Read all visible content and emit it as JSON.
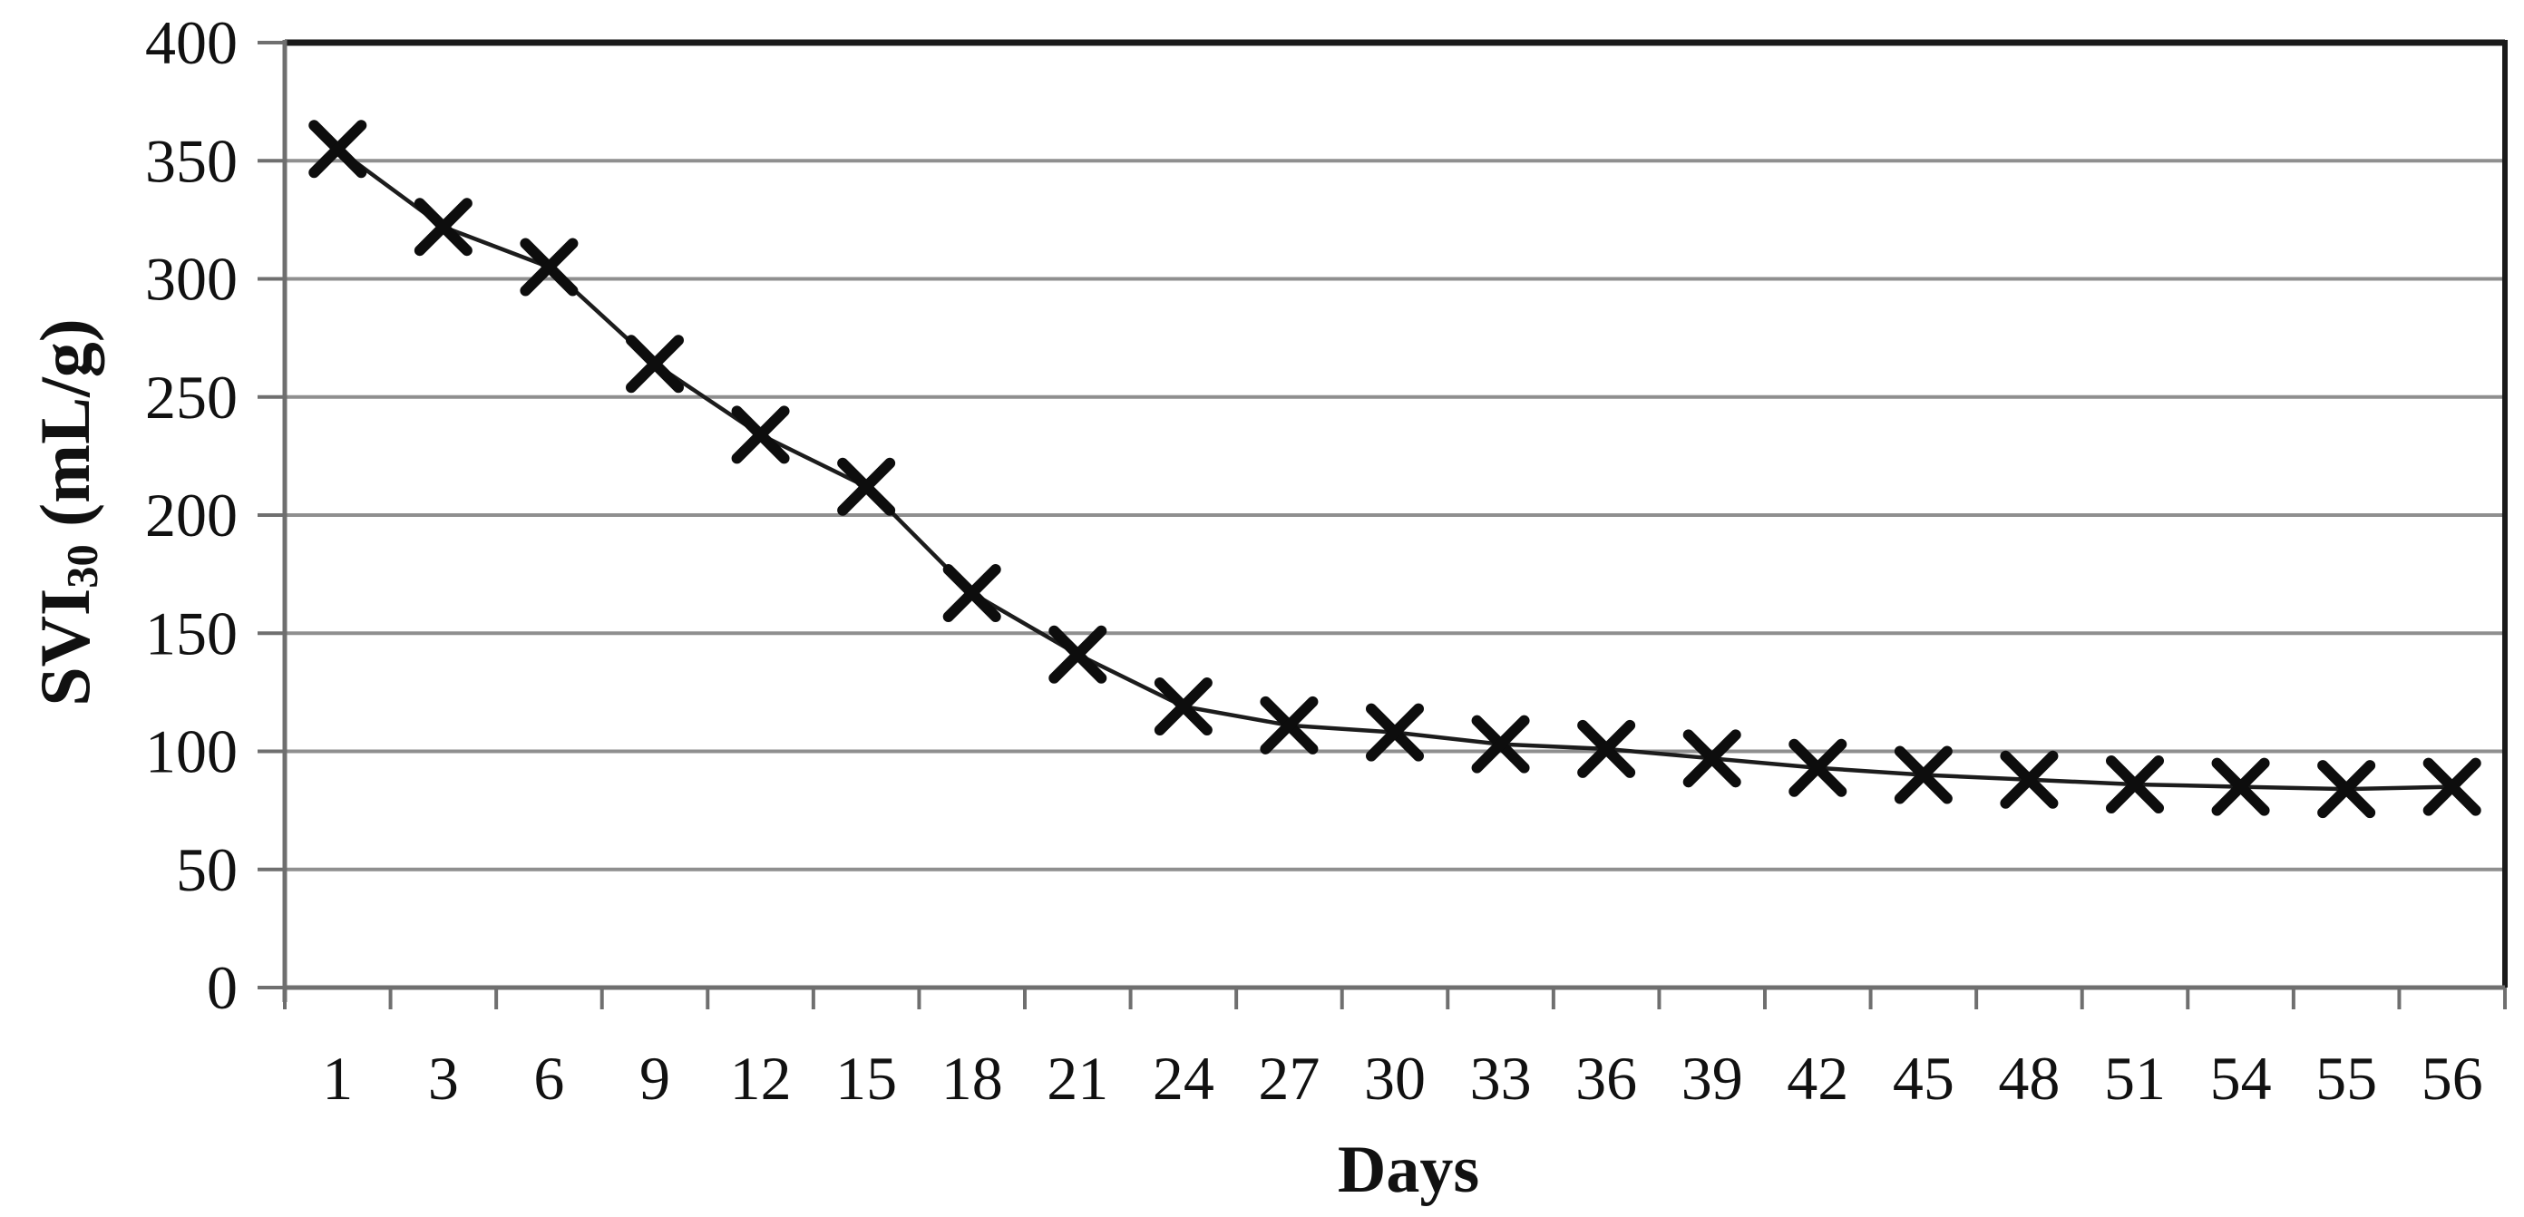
{
  "chart_data": {
    "type": "line",
    "title": "",
    "xlabel": "Days",
    "ylabel": {
      "main": "SVI",
      "sub": "30",
      "unit": " (mL/g)"
    },
    "x_categories": [
      "1",
      "3",
      "6",
      "9",
      "12",
      "15",
      "18",
      "21",
      "24",
      "27",
      "30",
      "33",
      "36",
      "39",
      "42",
      "45",
      "48",
      "51",
      "54",
      "55",
      "56"
    ],
    "series": [
      {
        "name": "SVI30",
        "marker": "x",
        "values": [
          355,
          322,
          305,
          264,
          234,
          212,
          167,
          141,
          119,
          111,
          108,
          103,
          101,
          97,
          93,
          90,
          88,
          86,
          85,
          84,
          85
        ]
      }
    ],
    "ylim": [
      0,
      400
    ],
    "yticks": [
      "0",
      "50",
      "100",
      "150",
      "200",
      "250",
      "300",
      "350",
      "400"
    ],
    "ytick_step": 50,
    "grid": "horizontal",
    "legend": "none",
    "colors": {
      "line": "#1c1c1c",
      "marker": "#0d0d0d",
      "grid": "#8f8f8f",
      "axis": "#6f6f6f",
      "border": "#1a1a1a",
      "text": "#111111",
      "background": "#ffffff"
    }
  }
}
